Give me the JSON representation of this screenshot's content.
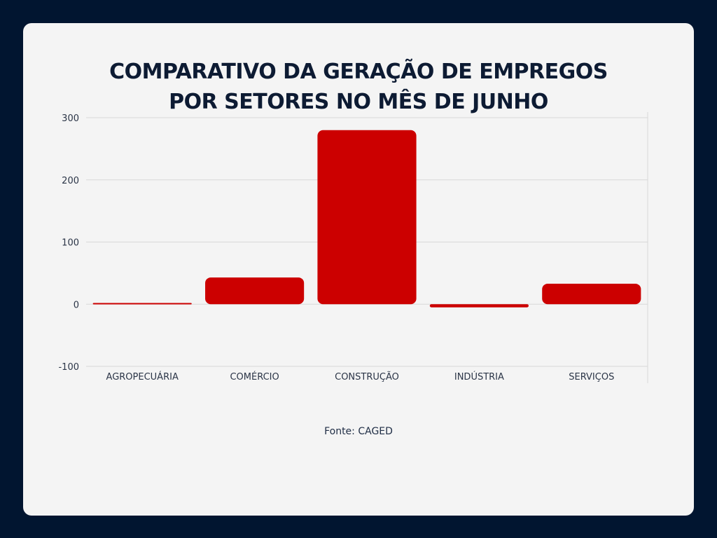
{
  "title_lines": [
    "COMPARATIVO DA GERAÇÃO DE EMPREGOS",
    "POR SETORES NO MÊS DE JUNHO"
  ],
  "source": "Fonte: CAGED",
  "colors": {
    "background": "#011530",
    "card": "#f4f4f4",
    "bar": "#cc0000",
    "title": "#0d1b33",
    "grid": "#d8d8d8",
    "axis_text": "#2b3547"
  },
  "chart_data": {
    "type": "bar",
    "categories": [
      "AGROPECUÁRIA",
      "COMÉRCIO",
      "CONSTRUÇÃO",
      "INDÚSTRIA",
      "SERVIÇOS"
    ],
    "values": [
      2,
      43,
      280,
      -5,
      33
    ],
    "title": "COMPARATIVO DA GERAÇÃO DE EMPREGOS POR SETORES NO MÊS DE JUNHO",
    "xlabel": "",
    "ylabel": "",
    "ylim": [
      -100,
      300
    ],
    "yticks": [
      300,
      200,
      100,
      0,
      -100
    ],
    "grid": true,
    "legend": "none"
  }
}
